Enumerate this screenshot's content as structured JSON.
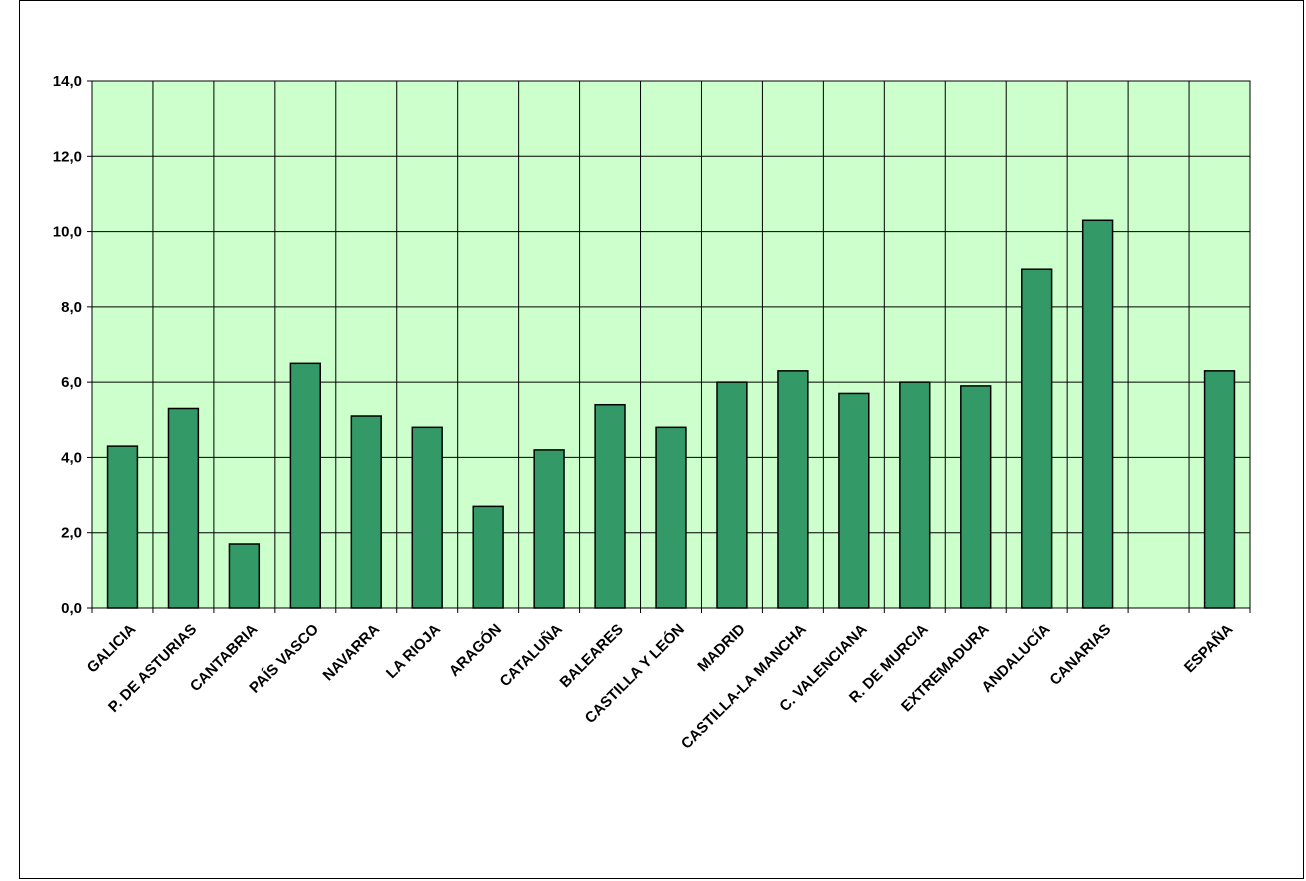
{
  "chart_data": {
    "type": "bar",
    "title": "",
    "xlabel": "",
    "ylabel": "",
    "ylim": [
      0,
      14
    ],
    "y_ticks": [
      "0,0",
      "2,0",
      "4,0",
      "6,0",
      "8,0",
      "10,0",
      "12,0",
      "14,0"
    ],
    "grid": true,
    "legend": "none",
    "colors": {
      "plot_background": "#ccffcc",
      "bar_fill": "#339966",
      "bar_edge": "#000000",
      "gridline": "#000000"
    },
    "categories": [
      "GALICIA",
      "P. DE ASTURIAS",
      "CANTABRIA",
      "PAÍS VASCO",
      "NAVARRA",
      "LA RIOJA",
      "ARAGÓN",
      "CATALUÑA",
      "BALEARES",
      "CASTILLA Y LEÓN",
      "MADRID",
      "CASTILLA-LA MANCHA",
      "C. VALENCIANA",
      "R. DE MURCIA",
      "EXTREMADURA",
      "ANDALUCÍA",
      "CANARIAS",
      "",
      "ESPAÑA"
    ],
    "values": [
      4.3,
      5.3,
      1.7,
      6.5,
      5.1,
      4.8,
      2.7,
      4.2,
      5.4,
      4.8,
      6.0,
      6.3,
      5.7,
      6.0,
      5.9,
      9.0,
      10.3,
      null,
      6.3
    ]
  }
}
